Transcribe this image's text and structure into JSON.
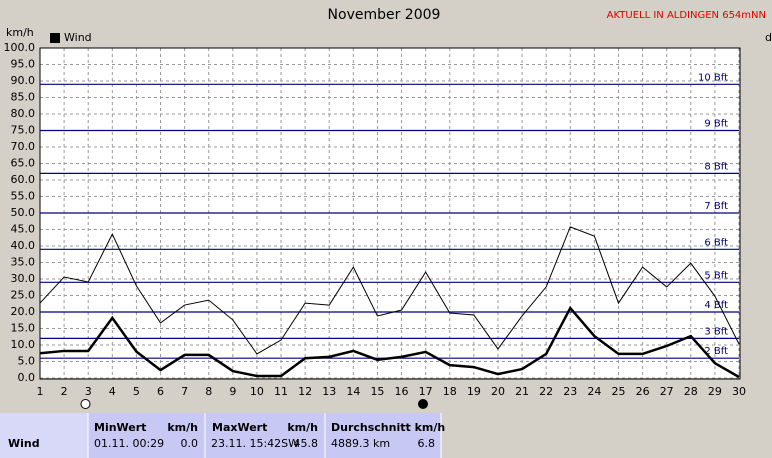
{
  "chart_data": {
    "type": "line",
    "title": "November 2009",
    "y_label": "km/h",
    "right_label": "d",
    "x": [
      1,
      2,
      3,
      4,
      5,
      6,
      7,
      8,
      9,
      10,
      11,
      12,
      13,
      14,
      15,
      16,
      17,
      18,
      19,
      20,
      21,
      22,
      23,
      24,
      25,
      26,
      27,
      28,
      29,
      30
    ],
    "xlim": [
      1,
      30
    ],
    "xticks": [
      1,
      2,
      3,
      4,
      5,
      6,
      7,
      8,
      9,
      10,
      11,
      12,
      13,
      14,
      15,
      16,
      17,
      18,
      19,
      20,
      21,
      22,
      23,
      24,
      25,
      26,
      27,
      28,
      29,
      30
    ],
    "ylim": [
      0,
      100
    ],
    "yticks": [
      {
        "value": 0,
        "label": "0.0"
      },
      {
        "value": 5,
        "label": "5.0"
      },
      {
        "value": 10,
        "label": "10.0"
      },
      {
        "value": 15,
        "label": "15.0"
      },
      {
        "value": 20,
        "label": "20.0"
      },
      {
        "value": 25,
        "label": "25.0"
      },
      {
        "value": 30,
        "label": "30.0"
      },
      {
        "value": 35,
        "label": "35.0"
      },
      {
        "value": 40,
        "label": "40.0"
      },
      {
        "value": 45,
        "label": "45.0"
      },
      {
        "value": 50,
        "label": "50.0"
      },
      {
        "value": 55,
        "label": "55.0"
      },
      {
        "value": 60,
        "label": "60.0"
      },
      {
        "value": 65,
        "label": "65.0"
      },
      {
        "value": 70,
        "label": "70.0"
      },
      {
        "value": 75,
        "label": "75.0"
      },
      {
        "value": 80,
        "label": "80.0"
      },
      {
        "value": 85,
        "label": "85.0"
      },
      {
        "value": 90,
        "label": "90.0"
      },
      {
        "value": 95,
        "label": "95.0"
      },
      {
        "value": 100,
        "label": "100.0"
      }
    ],
    "grid": true,
    "reference_lines": [
      {
        "value": 6,
        "label": "2 Bft"
      },
      {
        "value": 12,
        "label": "3 Bft"
      },
      {
        "value": 20,
        "label": "4 Bft"
      },
      {
        "value": 29,
        "label": "5 Bft"
      },
      {
        "value": 39,
        "label": "6 Bft"
      },
      {
        "value": 50,
        "label": "7 Bft"
      },
      {
        "value": 62,
        "label": "8 Bft"
      },
      {
        "value": 75,
        "label": "9 Bft"
      },
      {
        "value": 89,
        "label": "10 Bft"
      }
    ],
    "reference_color": "#000080",
    "series": [
      {
        "name": "Wind",
        "color": "#000000",
        "width": 2.5,
        "values": [
          7.5,
          8.2,
          8.2,
          18.2,
          8,
          2.4,
          7,
          7,
          2.1,
          0.6,
          0.6,
          6,
          6.4,
          8.2,
          5.5,
          6.4,
          7.9,
          3.9,
          3.3,
          1.2,
          2.7,
          7.3,
          21.2,
          12.7,
          7.3,
          7.3,
          9.7,
          12.7,
          4.5,
          0.3
        ]
      },
      {
        "color": "#000000",
        "width": 1,
        "values": [
          22.7,
          30.6,
          29.1,
          43.6,
          27.9,
          16.7,
          22.1,
          23.6,
          17.6,
          7.3,
          11.5,
          22.7,
          22.1,
          33.6,
          18.8,
          20.6,
          32.1,
          19.7,
          19.1,
          8.8,
          18.8,
          27.6,
          45.8,
          43,
          22.7,
          33.6,
          27.6,
          34.8,
          24.8,
          10.3
        ]
      }
    ]
  },
  "header": {
    "station": "AKTUELL IN ALDINGEN 654mNN"
  },
  "table": {
    "header": [
      "MinWert",
      "km/h",
      "MaxWert",
      "km/h",
      "Durchschnitt km/h"
    ],
    "rows": [
      [
        "Wind",
        "01.11.  00:29",
        "0.0",
        "23.11.  15:42SW",
        "45.8",
        "4889.3 km",
        "6.8"
      ]
    ]
  }
}
